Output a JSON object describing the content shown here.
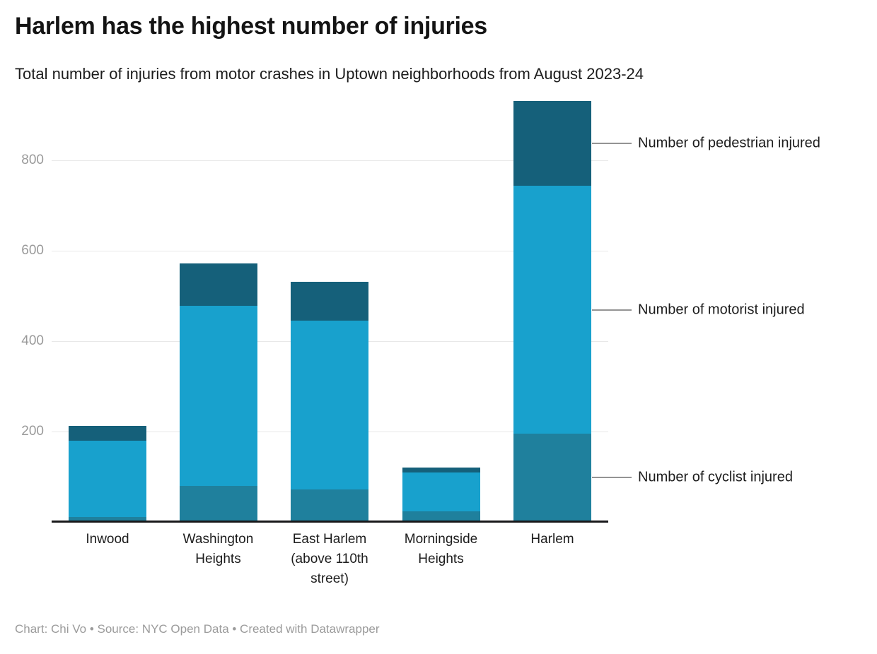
{
  "chart_data": {
    "type": "bar",
    "variant": "stacked-column",
    "title": "Harlem has the highest number of injuries",
    "subtitle": "Total number of injuries from motor crashes in Uptown neighborhoods from August 2023-24",
    "categories": [
      "Inwood",
      "Washington Heights",
      "East Harlem (above 110th street)",
      "Morningside Heights",
      "Harlem"
    ],
    "series": [
      {
        "name": "Number of cyclist injured",
        "color": "#1f809d",
        "values": [
          11,
          80,
          72,
          23,
          196
        ]
      },
      {
        "name": "Number of motorist injured",
        "color": "#18a1cd",
        "values": [
          168,
          398,
          373,
          86,
          547
        ]
      },
      {
        "name": "Number of pedestrian injured",
        "color": "#15607a",
        "values": [
          34,
          94,
          87,
          12,
          188
        ]
      }
    ],
    "totals": [
      213,
      572,
      532,
      121,
      931
    ],
    "xlabel": "",
    "ylabel": "",
    "yticks": [
      200,
      400,
      600,
      800
    ],
    "ylim": [
      0,
      940
    ],
    "grid": true,
    "legend_position": "right-annotation-labels",
    "annotation_order_top_to_bottom": [
      "Number of pedestrian injured",
      "Number of motorist injured",
      "Number of cyclist injured"
    ]
  },
  "footer": {
    "text": "Chart: Chi Vo • Source: NYC Open Data • Created with Datawrapper"
  },
  "colors": {
    "background": "#ffffff",
    "title_text": "#141414",
    "body_text": "#1d1d1d",
    "tick_label": "#9a9a9a",
    "gridline": "#e8e8e8",
    "axis_line": "#18181a",
    "annotation_line": "#949494",
    "footer_text": "#9b9b9b"
  }
}
